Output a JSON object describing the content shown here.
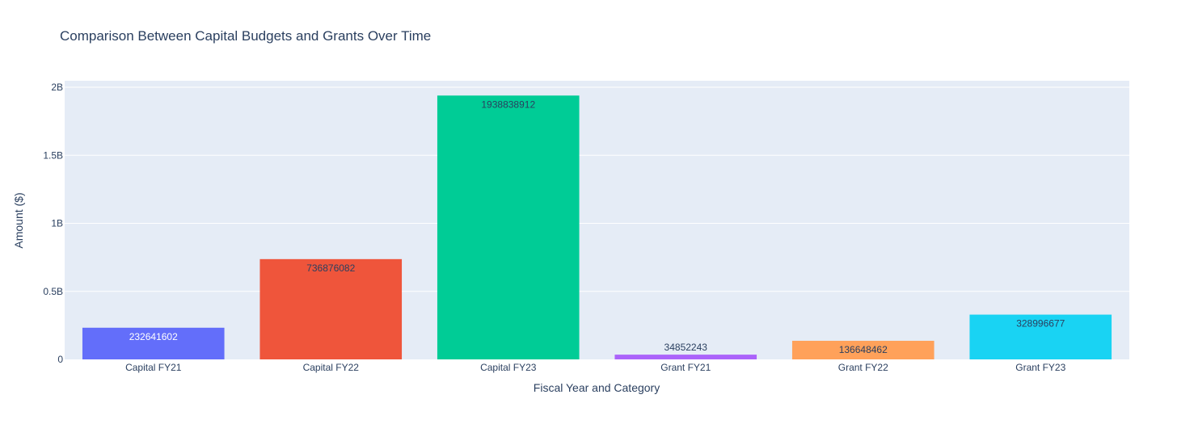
{
  "chart_data": {
    "type": "bar",
    "title": "Comparison Between Capital Budgets and Grants Over Time",
    "xlabel": "Fiscal Year and Category",
    "ylabel": "Amount ($)",
    "categories": [
      "Capital FY21",
      "Capital FY22",
      "Capital FY23",
      "Grant FY21",
      "Grant FY22",
      "Grant FY23"
    ],
    "values": [
      232641602,
      736876082,
      1938838912,
      34852243,
      136648462,
      328996677
    ],
    "value_labels": [
      "232641602",
      "736876082",
      "1938838912",
      "34852243",
      "136648462",
      "328996677"
    ],
    "colors": [
      "#636efa",
      "#ef553b",
      "#00cc96",
      "#ab63fa",
      "#ffa15a",
      "#19d3f3"
    ],
    "label_colors": [
      "#ffffff",
      "#2a3f5f",
      "#2a3f5f",
      "#2a3f5f",
      "#2a3f5f",
      "#2a3f5f"
    ],
    "ylim": [
      0,
      2000000000
    ],
    "yticks": [
      0,
      500000000,
      1000000000,
      1500000000,
      2000000000
    ],
    "ytick_labels": [
      "0",
      "0.5B",
      "1B",
      "1.5B",
      "2B"
    ],
    "grid": true,
    "plot_background": "#e5ecf6",
    "legend": "none"
  }
}
